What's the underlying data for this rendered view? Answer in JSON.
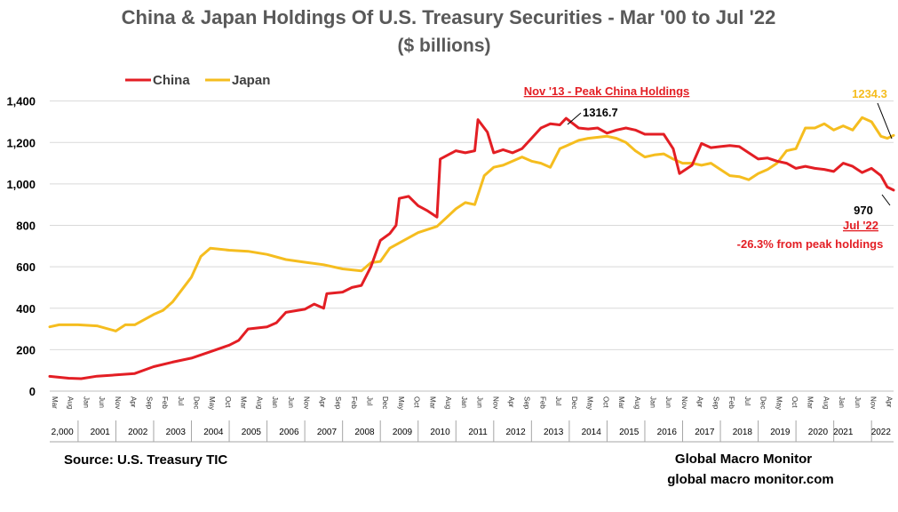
{
  "chart_data": {
    "type": "line",
    "title": "China & Japan Holdings Of U.S. Treasury Securities - Mar '00 to Jul '22",
    "subtitle": "($ billions)",
    "ylim": [
      0,
      1450
    ],
    "yticks": [
      0,
      200,
      400,
      600,
      800,
      1000,
      1200,
      1400
    ],
    "ytick_labels": [
      "0",
      "200",
      "400",
      "600",
      "800",
      "1,000",
      "1,200",
      "1,400"
    ],
    "x_start": "2000-03",
    "x_end": "2022-07",
    "month_tick_labels": [
      "Mar",
      "Aug",
      "Jan",
      "Jun",
      "Nov",
      "Apr",
      "Sep",
      "Feb",
      "Jul",
      "Dec",
      "May",
      "Oct"
    ],
    "year_labels": [
      {
        "x": "2000-07",
        "label": "2,000"
      },
      {
        "x": "2001-07",
        "label": "2001"
      },
      {
        "x": "2002-07",
        "label": "2002"
      },
      {
        "x": "2003-07",
        "label": "2003"
      },
      {
        "x": "2004-07",
        "label": "2004"
      },
      {
        "x": "2005-07",
        "label": "2005"
      },
      {
        "x": "2006-07",
        "label": "2006"
      },
      {
        "x": "2007-07",
        "label": "2007"
      },
      {
        "x": "2008-07",
        "label": "2008"
      },
      {
        "x": "2009-07",
        "label": "2009"
      },
      {
        "x": "2010-07",
        "label": "2010"
      },
      {
        "x": "2011-07",
        "label": "2011"
      },
      {
        "x": "2012-07",
        "label": "2012"
      },
      {
        "x": "2013-07",
        "label": "2013"
      },
      {
        "x": "2014-07",
        "label": "2014"
      },
      {
        "x": "2015-07",
        "label": "2015"
      },
      {
        "x": "2016-07",
        "label": "2016"
      },
      {
        "x": "2017-07",
        "label": "2017"
      },
      {
        "x": "2018-07",
        "label": "2018"
      },
      {
        "x": "2019-07",
        "label": "2019"
      },
      {
        "x": "2020-07",
        "label": "2020"
      },
      {
        "x": "2021-03",
        "label": "2021"
      },
      {
        "x": "2022-03",
        "label": "2022"
      }
    ],
    "grid": true,
    "legend_position": "top-left",
    "series": [
      {
        "name": "China",
        "color": "#e31e24",
        "points": [
          [
            "2000-03",
            71
          ],
          [
            "2000-09",
            62
          ],
          [
            "2001-01",
            60
          ],
          [
            "2001-06",
            72
          ],
          [
            "2001-12",
            78
          ],
          [
            "2002-06",
            85
          ],
          [
            "2002-12",
            118
          ],
          [
            "2003-06",
            140
          ],
          [
            "2003-12",
            159
          ],
          [
            "2004-06",
            190
          ],
          [
            "2004-12",
            222
          ],
          [
            "2005-03",
            245
          ],
          [
            "2005-06",
            300
          ],
          [
            "2005-12",
            310
          ],
          [
            "2006-03",
            330
          ],
          [
            "2006-06",
            380
          ],
          [
            "2006-12",
            395
          ],
          [
            "2007-03",
            420
          ],
          [
            "2007-06",
            400
          ],
          [
            "2007-07",
            470
          ],
          [
            "2007-12",
            478
          ],
          [
            "2008-03",
            500
          ],
          [
            "2008-06",
            510
          ],
          [
            "2008-09",
            600
          ],
          [
            "2008-12",
            727
          ],
          [
            "2009-03",
            760
          ],
          [
            "2009-05",
            800
          ],
          [
            "2009-06",
            930
          ],
          [
            "2009-09",
            940
          ],
          [
            "2009-12",
            895
          ],
          [
            "2010-03",
            870
          ],
          [
            "2010-06",
            840
          ],
          [
            "2010-07",
            1120
          ],
          [
            "2010-12",
            1160
          ],
          [
            "2011-03",
            1150
          ],
          [
            "2011-06",
            1160
          ],
          [
            "2011-07",
            1310
          ],
          [
            "2011-10",
            1250
          ],
          [
            "2011-12",
            1150
          ],
          [
            "2012-03",
            1165
          ],
          [
            "2012-06",
            1150
          ],
          [
            "2012-09",
            1170
          ],
          [
            "2012-12",
            1220
          ],
          [
            "2013-03",
            1270
          ],
          [
            "2013-06",
            1290
          ],
          [
            "2013-09",
            1285
          ],
          [
            "2013-11",
            1316.7
          ],
          [
            "2014-03",
            1270
          ],
          [
            "2014-06",
            1265
          ],
          [
            "2014-09",
            1270
          ],
          [
            "2014-12",
            1245
          ],
          [
            "2015-03",
            1260
          ],
          [
            "2015-06",
            1270
          ],
          [
            "2015-09",
            1260
          ],
          [
            "2015-12",
            1240
          ],
          [
            "2016-03",
            1240
          ],
          [
            "2016-06",
            1240
          ],
          [
            "2016-09",
            1170
          ],
          [
            "2016-11",
            1050
          ],
          [
            "2017-03",
            1090
          ],
          [
            "2017-06",
            1195
          ],
          [
            "2017-09",
            1175
          ],
          [
            "2017-12",
            1180
          ],
          [
            "2018-03",
            1185
          ],
          [
            "2018-06",
            1180
          ],
          [
            "2018-09",
            1150
          ],
          [
            "2018-12",
            1120
          ],
          [
            "2019-03",
            1125
          ],
          [
            "2019-06",
            1110
          ],
          [
            "2019-09",
            1100
          ],
          [
            "2019-12",
            1075
          ],
          [
            "2020-03",
            1085
          ],
          [
            "2020-06",
            1075
          ],
          [
            "2020-09",
            1070
          ],
          [
            "2020-12",
            1060
          ],
          [
            "2021-03",
            1100
          ],
          [
            "2021-06",
            1085
          ],
          [
            "2021-09",
            1055
          ],
          [
            "2021-12",
            1075
          ],
          [
            "2022-03",
            1040
          ],
          [
            "2022-05",
            985
          ],
          [
            "2022-07",
            970
          ]
        ]
      },
      {
        "name": "Japan",
        "color": "#f5bd1f",
        "points": [
          [
            "2000-03",
            310
          ],
          [
            "2000-06",
            320
          ],
          [
            "2000-12",
            320
          ],
          [
            "2001-06",
            315
          ],
          [
            "2001-12",
            290
          ],
          [
            "2002-03",
            320
          ],
          [
            "2002-06",
            320
          ],
          [
            "2002-12",
            370
          ],
          [
            "2003-03",
            390
          ],
          [
            "2003-06",
            430
          ],
          [
            "2003-12",
            550
          ],
          [
            "2004-03",
            650
          ],
          [
            "2004-06",
            690
          ],
          [
            "2004-12",
            680
          ],
          [
            "2005-06",
            675
          ],
          [
            "2005-12",
            660
          ],
          [
            "2006-06",
            635
          ],
          [
            "2006-12",
            622
          ],
          [
            "2007-06",
            610
          ],
          [
            "2007-12",
            590
          ],
          [
            "2008-06",
            580
          ],
          [
            "2008-09",
            620
          ],
          [
            "2008-12",
            626
          ],
          [
            "2009-03",
            690
          ],
          [
            "2009-06",
            715
          ],
          [
            "2009-12",
            765
          ],
          [
            "2010-06",
            795
          ],
          [
            "2010-12",
            880
          ],
          [
            "2011-03",
            910
          ],
          [
            "2011-06",
            900
          ],
          [
            "2011-09",
            1040
          ],
          [
            "2011-12",
            1080
          ],
          [
            "2012-03",
            1090
          ],
          [
            "2012-06",
            1110
          ],
          [
            "2012-09",
            1130
          ],
          [
            "2012-12",
            1110
          ],
          [
            "2013-03",
            1100
          ],
          [
            "2013-06",
            1080
          ],
          [
            "2013-09",
            1170
          ],
          [
            "2013-12",
            1190
          ],
          [
            "2014-03",
            1210
          ],
          [
            "2014-06",
            1220
          ],
          [
            "2014-12",
            1230
          ],
          [
            "2015-03",
            1220
          ],
          [
            "2015-06",
            1200
          ],
          [
            "2015-09",
            1160
          ],
          [
            "2015-12",
            1130
          ],
          [
            "2016-03",
            1140
          ],
          [
            "2016-06",
            1145
          ],
          [
            "2016-09",
            1120
          ],
          [
            "2016-12",
            1100
          ],
          [
            "2017-03",
            1100
          ],
          [
            "2017-06",
            1090
          ],
          [
            "2017-09",
            1100
          ],
          [
            "2017-12",
            1070
          ],
          [
            "2018-03",
            1040
          ],
          [
            "2018-06",
            1035
          ],
          [
            "2018-09",
            1020
          ],
          [
            "2018-12",
            1050
          ],
          [
            "2019-03",
            1070
          ],
          [
            "2019-06",
            1100
          ],
          [
            "2019-09",
            1160
          ],
          [
            "2019-12",
            1170
          ],
          [
            "2020-03",
            1270
          ],
          [
            "2020-06",
            1270
          ],
          [
            "2020-09",
            1290
          ],
          [
            "2020-12",
            1260
          ],
          [
            "2021-03",
            1280
          ],
          [
            "2021-06",
            1260
          ],
          [
            "2021-09",
            1320
          ],
          [
            "2021-12",
            1300
          ],
          [
            "2022-03",
            1230
          ],
          [
            "2022-05",
            1220
          ],
          [
            "2022-07",
            1234.3
          ]
        ]
      }
    ],
    "annotations": [
      {
        "text": "Nov '13 - Peak China Holdings",
        "x": "2013-11",
        "y": 1316.7,
        "color": "#e31e24"
      },
      {
        "text": "1316.7",
        "x": "2013-11",
        "y": 1316.7
      },
      {
        "text": "1234.3",
        "x": "2022-07",
        "y": 1234.3,
        "color": "#f5bd1f"
      },
      {
        "text": "970",
        "x": "2022-07",
        "y": 970
      },
      {
        "text": "Jul '22",
        "x": "2022-07",
        "y": 970,
        "color": "#e31e24"
      },
      {
        "text": "-26.3% from peak holdings",
        "color": "#e31e24"
      }
    ]
  },
  "footer": {
    "source": "Source:  U.S. Treasury TIC",
    "brand_line1": "Global Macro Monitor",
    "brand_line2": "global macro monitor.com"
  }
}
